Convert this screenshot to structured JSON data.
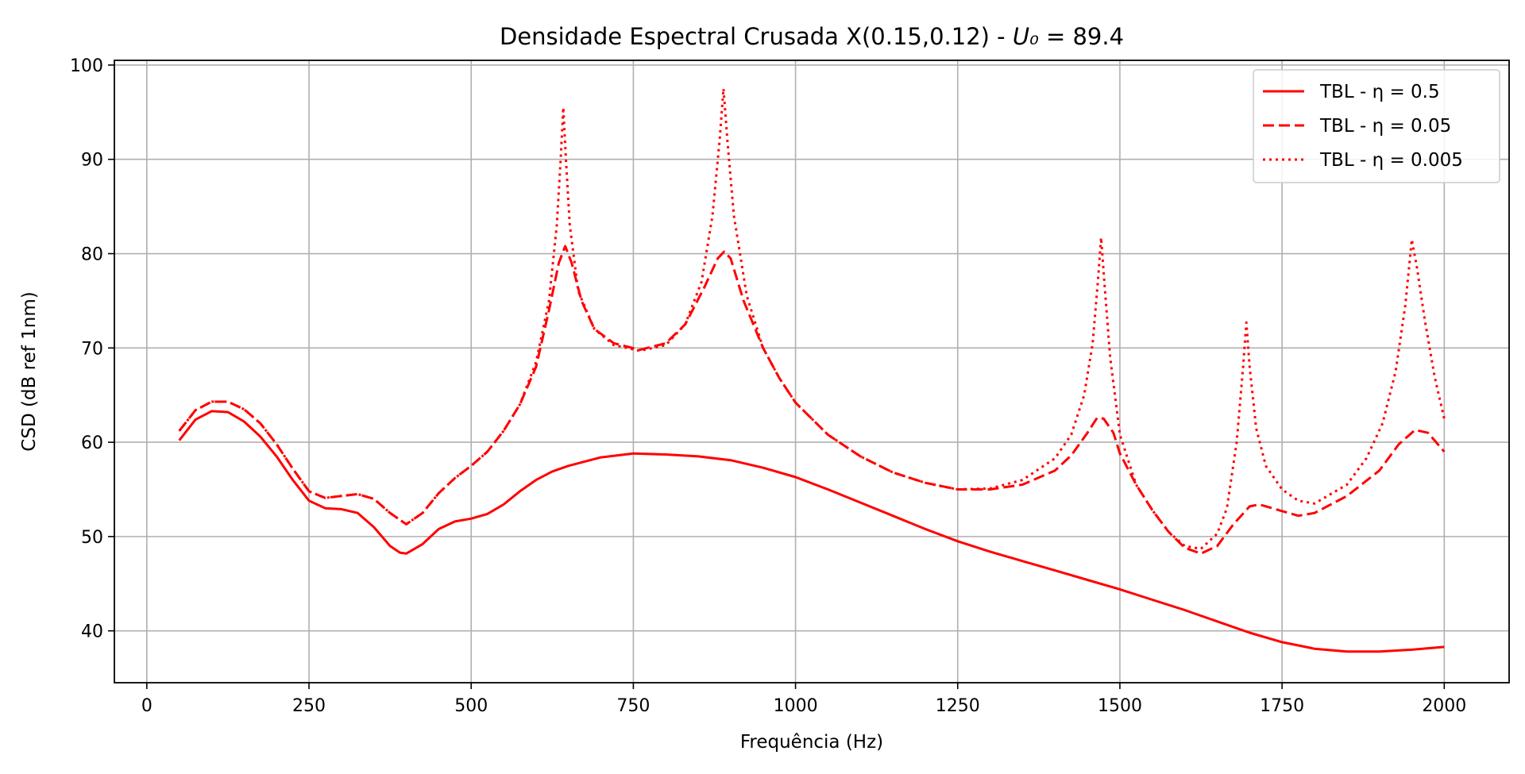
{
  "chart_data": {
    "type": "line",
    "title": "Densidade Espectral Crusada X(0.15,0.12) - U₀ = 89.4",
    "xlabel": "Frequência (Hz)",
    "ylabel": "CSD (dB ref 1nm)",
    "xlim": [
      -50,
      2100
    ],
    "ylim": [
      34.5,
      100.5
    ],
    "xticks": [
      0,
      250,
      500,
      750,
      1000,
      1250,
      1500,
      1750,
      2000
    ],
    "yticks": [
      40,
      50,
      60,
      70,
      80,
      90,
      100
    ],
    "grid": true,
    "legend_position": "top-right",
    "series": [
      {
        "name": "TBL - η = 0.5",
        "color": "#ff0000",
        "style": "solid",
        "points": [
          [
            50,
            60.2
          ],
          [
            75,
            62.4
          ],
          [
            100,
            63.3
          ],
          [
            125,
            63.2
          ],
          [
            150,
            62.2
          ],
          [
            175,
            60.6
          ],
          [
            200,
            58.5
          ],
          [
            225,
            56.0
          ],
          [
            250,
            53.8
          ],
          [
            275,
            53.0
          ],
          [
            300,
            52.9
          ],
          [
            325,
            52.5
          ],
          [
            350,
            51.0
          ],
          [
            375,
            49.0
          ],
          [
            390,
            48.3
          ],
          [
            400,
            48.2
          ],
          [
            425,
            49.2
          ],
          [
            450,
            50.8
          ],
          [
            475,
            51.6
          ],
          [
            500,
            51.9
          ],
          [
            525,
            52.4
          ],
          [
            550,
            53.4
          ],
          [
            575,
            54.8
          ],
          [
            600,
            56.0
          ],
          [
            625,
            56.9
          ],
          [
            650,
            57.5
          ],
          [
            700,
            58.4
          ],
          [
            750,
            58.8
          ],
          [
            800,
            58.7
          ],
          [
            850,
            58.5
          ],
          [
            900,
            58.1
          ],
          [
            950,
            57.3
          ],
          [
            1000,
            56.3
          ],
          [
            1050,
            55.0
          ],
          [
            1100,
            53.6
          ],
          [
            1150,
            52.2
          ],
          [
            1200,
            50.8
          ],
          [
            1250,
            49.5
          ],
          [
            1300,
            48.4
          ],
          [
            1350,
            47.4
          ],
          [
            1400,
            46.4
          ],
          [
            1450,
            45.4
          ],
          [
            1500,
            44.4
          ],
          [
            1550,
            43.3
          ],
          [
            1600,
            42.2
          ],
          [
            1650,
            41.0
          ],
          [
            1700,
            39.8
          ],
          [
            1750,
            38.8
          ],
          [
            1800,
            38.1
          ],
          [
            1850,
            37.8
          ],
          [
            1900,
            37.8
          ],
          [
            1950,
            38.0
          ],
          [
            2000,
            38.3
          ]
        ]
      },
      {
        "name": "TBL - η = 0.05",
        "color": "#ff0000",
        "style": "dashed",
        "points": [
          [
            50,
            61.2
          ],
          [
            75,
            63.4
          ],
          [
            100,
            64.3
          ],
          [
            125,
            64.3
          ],
          [
            150,
            63.5
          ],
          [
            175,
            62.0
          ],
          [
            200,
            59.8
          ],
          [
            225,
            57.2
          ],
          [
            250,
            54.8
          ],
          [
            275,
            54.1
          ],
          [
            300,
            54.3
          ],
          [
            325,
            54.5
          ],
          [
            350,
            54.0
          ],
          [
            375,
            52.5
          ],
          [
            400,
            51.3
          ],
          [
            425,
            52.5
          ],
          [
            450,
            54.6
          ],
          [
            475,
            56.2
          ],
          [
            500,
            57.5
          ],
          [
            525,
            59.0
          ],
          [
            550,
            61.2
          ],
          [
            575,
            64.0
          ],
          [
            600,
            68.0
          ],
          [
            620,
            74.0
          ],
          [
            635,
            79.0
          ],
          [
            645,
            80.8
          ],
          [
            655,
            79.0
          ],
          [
            670,
            75.0
          ],
          [
            690,
            72.0
          ],
          [
            720,
            70.5
          ],
          [
            760,
            69.8
          ],
          [
            800,
            70.5
          ],
          [
            830,
            72.5
          ],
          [
            860,
            76.5
          ],
          [
            880,
            79.5
          ],
          [
            890,
            80.2
          ],
          [
            900,
            79.5
          ],
          [
            920,
            75.0
          ],
          [
            950,
            70.0
          ],
          [
            975,
            66.8
          ],
          [
            1000,
            64.2
          ],
          [
            1050,
            60.8
          ],
          [
            1100,
            58.5
          ],
          [
            1150,
            56.8
          ],
          [
            1200,
            55.7
          ],
          [
            1250,
            55.0
          ],
          [
            1300,
            55.0
          ],
          [
            1350,
            55.5
          ],
          [
            1400,
            57.0
          ],
          [
            1425,
            58.6
          ],
          [
            1450,
            61.0
          ],
          [
            1465,
            62.6
          ],
          [
            1475,
            62.5
          ],
          [
            1490,
            61.0
          ],
          [
            1500,
            58.8
          ],
          [
            1525,
            55.5
          ],
          [
            1550,
            52.8
          ],
          [
            1575,
            50.5
          ],
          [
            1600,
            48.8
          ],
          [
            1625,
            48.2
          ],
          [
            1650,
            49.0
          ],
          [
            1675,
            51.3
          ],
          [
            1700,
            53.2
          ],
          [
            1715,
            53.4
          ],
          [
            1750,
            52.7
          ],
          [
            1775,
            52.2
          ],
          [
            1800,
            52.5
          ],
          [
            1850,
            54.3
          ],
          [
            1900,
            57.0
          ],
          [
            1930,
            59.8
          ],
          [
            1955,
            61.3
          ],
          [
            1975,
            61.0
          ],
          [
            2000,
            59.0
          ]
        ]
      },
      {
        "name": "TBL - η = 0.005",
        "color": "#ff0000",
        "style": "dotted",
        "points": [
          [
            50,
            61.2
          ],
          [
            75,
            63.4
          ],
          [
            100,
            64.3
          ],
          [
            125,
            64.3
          ],
          [
            150,
            63.5
          ],
          [
            175,
            62.0
          ],
          [
            200,
            59.8
          ],
          [
            225,
            57.2
          ],
          [
            250,
            54.8
          ],
          [
            275,
            54.1
          ],
          [
            300,
            54.3
          ],
          [
            325,
            54.5
          ],
          [
            350,
            54.0
          ],
          [
            375,
            52.5
          ],
          [
            400,
            51.3
          ],
          [
            425,
            52.5
          ],
          [
            450,
            54.6
          ],
          [
            475,
            56.2
          ],
          [
            500,
            57.5
          ],
          [
            525,
            59.0
          ],
          [
            550,
            61.2
          ],
          [
            575,
            64.0
          ],
          [
            600,
            68.5
          ],
          [
            620,
            75.0
          ],
          [
            632,
            83.0
          ],
          [
            638,
            90.0
          ],
          [
            642,
            95.5
          ],
          [
            646,
            90.0
          ],
          [
            652,
            83.0
          ],
          [
            665,
            76.0
          ],
          [
            690,
            72.0
          ],
          [
            720,
            70.3
          ],
          [
            760,
            69.7
          ],
          [
            800,
            70.3
          ],
          [
            830,
            72.5
          ],
          [
            855,
            77.0
          ],
          [
            872,
            84.0
          ],
          [
            883,
            92.0
          ],
          [
            889,
            97.5
          ],
          [
            895,
            92.0
          ],
          [
            905,
            84.0
          ],
          [
            925,
            75.5
          ],
          [
            950,
            70.0
          ],
          [
            975,
            66.8
          ],
          [
            1000,
            64.2
          ],
          [
            1050,
            60.8
          ],
          [
            1100,
            58.5
          ],
          [
            1150,
            56.8
          ],
          [
            1200,
            55.7
          ],
          [
            1250,
            55.0
          ],
          [
            1300,
            55.1
          ],
          [
            1350,
            56.0
          ],
          [
            1400,
            58.3
          ],
          [
            1425,
            60.8
          ],
          [
            1445,
            65.0
          ],
          [
            1458,
            70.5
          ],
          [
            1466,
            77.0
          ],
          [
            1471,
            81.7
          ],
          [
            1476,
            77.0
          ],
          [
            1485,
            69.0
          ],
          [
            1500,
            60.8
          ],
          [
            1525,
            55.5
          ],
          [
            1550,
            52.8
          ],
          [
            1575,
            50.5
          ],
          [
            1600,
            49.0
          ],
          [
            1625,
            48.7
          ],
          [
            1650,
            50.3
          ],
          [
            1665,
            53.0
          ],
          [
            1680,
            60.0
          ],
          [
            1690,
            68.0
          ],
          [
            1695,
            72.7
          ],
          [
            1700,
            68.0
          ],
          [
            1710,
            61.5
          ],
          [
            1725,
            57.5
          ],
          [
            1750,
            55.0
          ],
          [
            1775,
            53.8
          ],
          [
            1800,
            53.5
          ],
          [
            1850,
            55.5
          ],
          [
            1880,
            58.3
          ],
          [
            1905,
            62.0
          ],
          [
            1925,
            67.5
          ],
          [
            1940,
            74.5
          ],
          [
            1950,
            81.5
          ],
          [
            1958,
            78.5
          ],
          [
            1970,
            73.0
          ],
          [
            1985,
            67.0
          ],
          [
            2000,
            62.5
          ]
        ]
      }
    ]
  }
}
